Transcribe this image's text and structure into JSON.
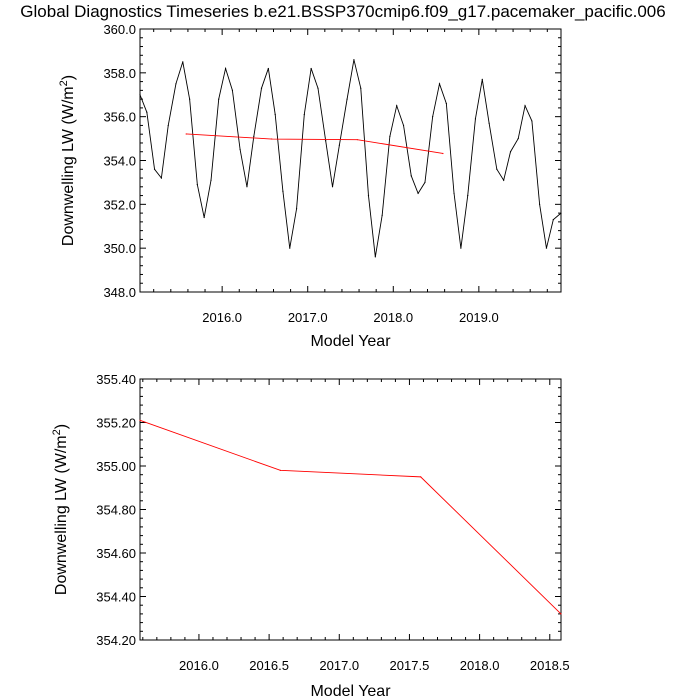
{
  "title": "Global Diagnostics Timeseries b.e21.BSSP370cmip6.f09_g17.pacemaker_pacific.006",
  "chart_data": [
    {
      "type": "line",
      "xlabel": "Model Year",
      "ylabel": "Downwelling LW (W/m",
      "ylabel_sup": "2",
      "ylabel_close": ")",
      "xlim": [
        2015.04,
        2019.96
      ],
      "ylim": [
        348.0,
        360.0
      ],
      "x_ticks": [
        2016.0,
        2017.0,
        2018.0,
        2019.0
      ],
      "x_tick_labels": [
        "2016.0",
        "2017.0",
        "2018.0",
        "2019.0"
      ],
      "y_ticks": [
        348.0,
        350.0,
        352.0,
        354.0,
        356.0,
        358.0,
        360.0
      ],
      "y_tick_labels": [
        "348.0",
        "350.0",
        "352.0",
        "354.0",
        "356.0",
        "358.0",
        "360.0"
      ],
      "series": [
        {
          "color": "#000000",
          "x": [
            2015.04,
            2015.12,
            2015.21,
            2015.29,
            2015.37,
            2015.46,
            2015.54,
            2015.62,
            2015.71,
            2015.79,
            2015.87,
            2015.96,
            2016.04,
            2016.12,
            2016.21,
            2016.29,
            2016.37,
            2016.46,
            2016.54,
            2016.62,
            2016.71,
            2016.79,
            2016.87,
            2016.96,
            2017.04,
            2017.12,
            2017.21,
            2017.29,
            2017.37,
            2017.46,
            2017.54,
            2017.62,
            2017.71,
            2017.79,
            2017.87,
            2017.96,
            2018.04,
            2018.12,
            2018.21,
            2018.29,
            2018.37,
            2018.46,
            2018.54,
            2018.62,
            2018.71,
            2018.79,
            2018.87,
            2018.96,
            2019.04,
            2019.12,
            2019.21,
            2019.29,
            2019.37,
            2019.46,
            2019.54,
            2019.62,
            2019.71,
            2019.79,
            2019.87,
            2019.96
          ],
          "values": [
            357.0,
            356.2,
            353.6,
            353.2,
            355.6,
            357.5,
            358.5,
            356.8,
            352.9,
            351.4,
            353.1,
            356.8,
            358.2,
            357.2,
            354.5,
            352.8,
            355.1,
            357.3,
            358.2,
            356.1,
            352.6,
            350.0,
            351.8,
            356.1,
            358.2,
            357.3,
            354.9,
            352.8,
            354.7,
            356.8,
            358.6,
            357.3,
            352.4,
            349.6,
            351.5,
            355.1,
            356.5,
            355.6,
            353.3,
            352.5,
            353.0,
            356.0,
            357.5,
            356.6,
            352.5,
            350.0,
            352.4,
            355.9,
            357.7,
            355.7,
            353.6,
            353.1,
            354.4,
            355.0,
            356.5,
            355.8,
            352.0,
            350.0,
            351.3,
            351.6
          ]
        },
        {
          "color": "#ff0000",
          "x": [
            2015.58,
            2016.58,
            2017.58,
            2018.58
          ],
          "values": [
            355.21,
            354.98,
            354.95,
            354.32
          ]
        }
      ]
    },
    {
      "type": "line",
      "xlabel": "Model Year",
      "ylabel": "Downwelling LW (W/m",
      "ylabel_sup": "2",
      "ylabel_close": ")",
      "xlim": [
        2015.58,
        2018.58
      ],
      "ylim": [
        354.2,
        355.4
      ],
      "x_ticks": [
        2016.0,
        2016.5,
        2017.0,
        2017.5,
        2018.0,
        2018.5
      ],
      "x_tick_labels": [
        "2016.0",
        "2016.5",
        "2017.0",
        "2017.5",
        "2018.0",
        "2018.5"
      ],
      "y_ticks": [
        354.2,
        354.4,
        354.6,
        354.8,
        355.0,
        355.2,
        355.4
      ],
      "y_tick_labels": [
        "354.20",
        "354.40",
        "354.60",
        "354.80",
        "355.00",
        "355.20",
        "355.40"
      ],
      "series": [
        {
          "color": "#ff0000",
          "x": [
            2015.58,
            2016.58,
            2017.58,
            2018.58
          ],
          "values": [
            355.21,
            354.98,
            354.95,
            354.32
          ]
        }
      ]
    }
  ]
}
